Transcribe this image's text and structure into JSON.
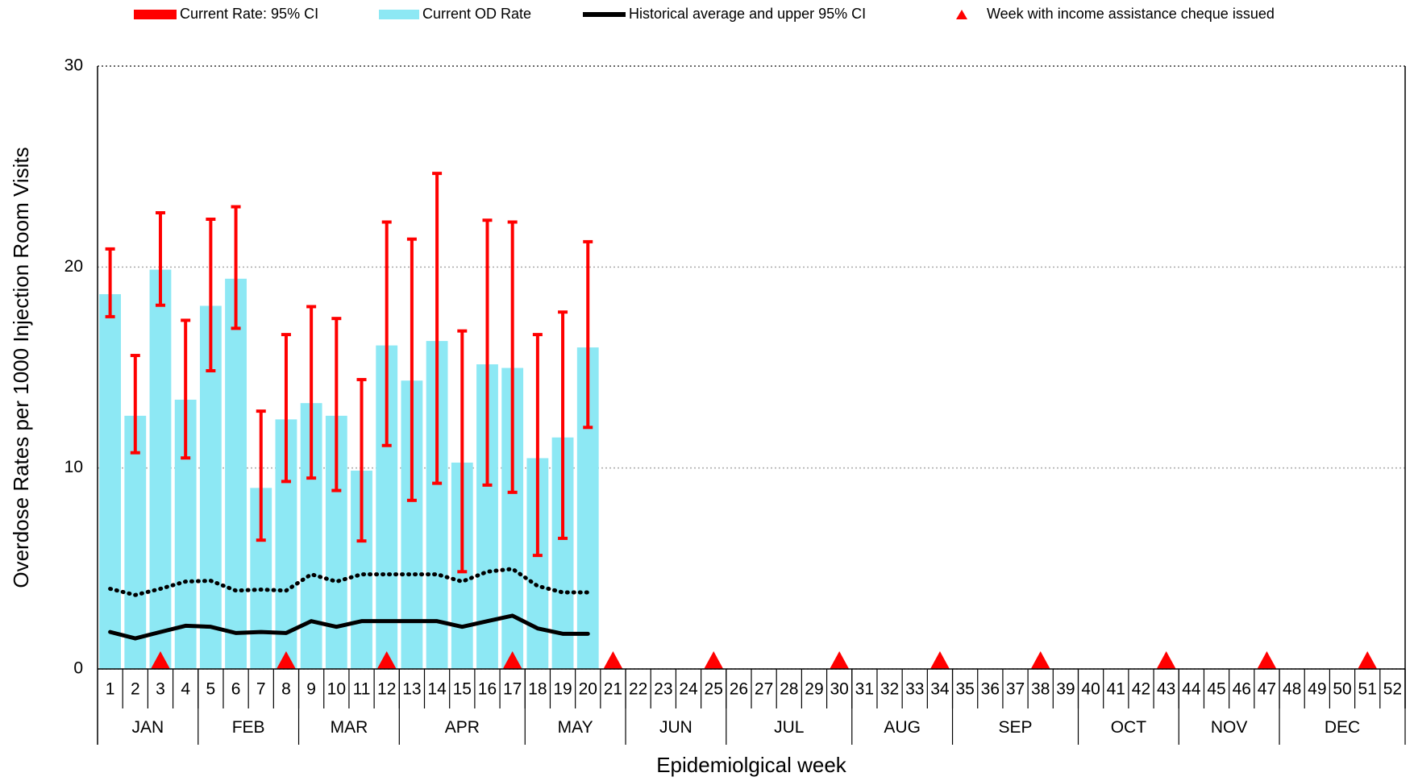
{
  "chart_data": {
    "type": "bar",
    "ylabel": "Overdose Rates per 1000 Injection Room Visits",
    "xlabel": "Epidemiolgical week",
    "ylim": [
      0,
      30
    ],
    "yticks": [
      0,
      10,
      20,
      30
    ],
    "grid": true,
    "categories": [
      "1",
      "2",
      "3",
      "4",
      "5",
      "6",
      "7",
      "8",
      "9",
      "10",
      "11",
      "12",
      "13",
      "14",
      "15",
      "16",
      "17",
      "18",
      "19",
      "20",
      "21",
      "22",
      "23",
      "24",
      "25",
      "26",
      "27",
      "28",
      "29",
      "30",
      "31",
      "32",
      "33",
      "34",
      "35",
      "36",
      "37",
      "38",
      "39",
      "40",
      "41",
      "42",
      "43",
      "44",
      "45",
      "46",
      "47",
      "48",
      "49",
      "50",
      "51",
      "52"
    ],
    "months": [
      {
        "name": "JAN",
        "first_week": 1,
        "last_week": 4
      },
      {
        "name": "FEB",
        "first_week": 5,
        "last_week": 8
      },
      {
        "name": "MAR",
        "first_week": 9,
        "last_week": 12
      },
      {
        "name": "APR",
        "first_week": 13,
        "last_week": 17
      },
      {
        "name": "MAY",
        "first_week": 18,
        "last_week": 21
      },
      {
        "name": "JUN",
        "first_week": 22,
        "last_week": 25
      },
      {
        "name": "JUL",
        "first_week": 26,
        "last_week": 30
      },
      {
        "name": "AUG",
        "first_week": 31,
        "last_week": 34
      },
      {
        "name": "SEP",
        "first_week": 35,
        "last_week": 39
      },
      {
        "name": "OCT",
        "first_week": 40,
        "last_week": 43
      },
      {
        "name": "NOV",
        "first_week": 44,
        "last_week": 47
      },
      {
        "name": "DEC",
        "first_week": 48,
        "last_week": 52
      }
    ],
    "series": [
      {
        "name": "Current Rate: 95% CI",
        "color": "#ff0000",
        "type": "errorbar",
        "low": [
          17.53,
          10.76,
          18.1,
          10.5,
          14.84,
          16.95,
          6.41,
          9.33,
          9.5,
          8.88,
          6.37,
          11.12,
          8.39,
          9.24,
          4.84,
          9.15,
          8.79,
          5.65,
          6.5,
          12.02,
          null,
          null,
          null,
          null,
          null,
          null,
          null,
          null,
          null,
          null,
          null,
          null,
          null,
          null,
          null,
          null,
          null,
          null,
          null,
          null,
          null,
          null,
          null,
          null,
          null,
          null,
          null,
          null,
          null,
          null,
          null,
          null
        ],
        "high": [
          20.9,
          15.6,
          22.7,
          17.35,
          22.38,
          23.0,
          12.83,
          16.64,
          18.03,
          17.44,
          14.4,
          22.24,
          21.39,
          24.66,
          16.82,
          22.33,
          22.24,
          16.64,
          17.76,
          21.26,
          null,
          null,
          null,
          null,
          null,
          null,
          null,
          null,
          null,
          null,
          null,
          null,
          null,
          null,
          null,
          null,
          null,
          null,
          null,
          null,
          null,
          null,
          null,
          null,
          null,
          null,
          null,
          null,
          null,
          null,
          null,
          null
        ]
      },
      {
        "name": "Current OD Rate",
        "color": "#8de8f4",
        "type": "bar",
        "values": [
          18.65,
          12.6,
          19.87,
          13.4,
          18.07,
          19.42,
          9.01,
          12.42,
          13.23,
          12.6,
          9.87,
          16.1,
          14.35,
          16.32,
          10.27,
          15.16,
          14.98,
          10.49,
          11.52,
          16.0,
          null,
          null,
          null,
          null,
          null,
          null,
          null,
          null,
          null,
          null,
          null,
          null,
          null,
          null,
          null,
          null,
          null,
          null,
          null,
          null,
          null,
          null,
          null,
          null,
          null,
          null,
          null,
          null,
          null,
          null,
          null,
          null
        ]
      },
      {
        "name": "Historical average and upper 95% CI",
        "color": "#000000",
        "type": "line",
        "values": [
          1.84,
          1.52,
          1.84,
          2.15,
          2.1,
          1.79,
          1.84,
          1.79,
          2.38,
          2.1,
          2.38,
          2.38,
          2.38,
          2.38,
          2.1,
          2.38,
          2.65,
          2.02,
          1.75,
          1.75,
          null,
          null,
          null,
          null,
          null,
          null,
          null,
          null,
          null,
          null,
          null,
          null,
          null,
          null,
          null,
          null,
          null,
          null,
          null,
          null,
          null,
          null,
          null,
          null,
          null,
          null,
          null,
          null,
          null,
          null,
          null,
          null
        ],
        "upper": [
          3.99,
          3.68,
          3.99,
          4.35,
          4.39,
          3.9,
          3.95,
          3.9,
          4.71,
          4.35,
          4.71,
          4.71,
          4.71,
          4.71,
          4.35,
          4.84,
          4.98,
          4.13,
          3.81,
          3.81,
          null,
          null,
          null,
          null,
          null,
          null,
          null,
          null,
          null,
          null,
          null,
          null,
          null,
          null,
          null,
          null,
          null,
          null,
          null,
          null,
          null,
          null,
          null,
          null,
          null,
          null,
          null,
          null,
          null,
          null,
          null,
          null
        ]
      },
      {
        "name": "Week with income assistance cheque issued",
        "color": "#ff0000",
        "type": "marker",
        "weeks": [
          3,
          8,
          12,
          17,
          21,
          25,
          30,
          34,
          38,
          43,
          47,
          51
        ]
      }
    ]
  }
}
